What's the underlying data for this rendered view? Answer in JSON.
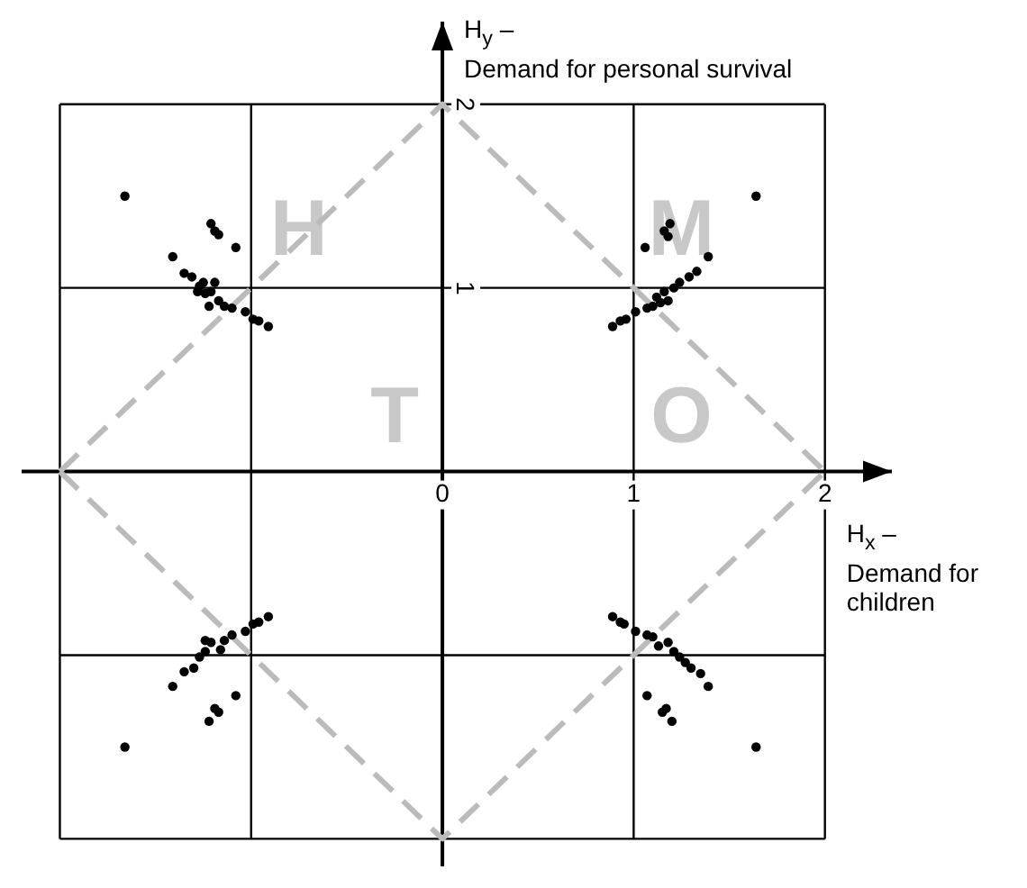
{
  "chart_data": {
    "type": "scatter",
    "xlabel": "H$_{x}$ –\nDemand for\nchildren",
    "ylabel": "H$_{y}$ –\nDemand for personal survival",
    "xlim": [
      -2.2,
      2.35
    ],
    "ylim": [
      -2.15,
      2.45
    ],
    "xticks": [
      {
        "value": -2,
        "label": null
      },
      {
        "value": -1,
        "label": null
      },
      0,
      1,
      2
    ],
    "yticks": [
      {
        "value": -2,
        "label": null
      },
      {
        "value": -1,
        "label": null
      },
      {
        "value": 0,
        "label": null
      },
      1,
      2
    ],
    "grid": true,
    "legend": false,
    "marker": "circle",
    "annotations": [
      "H",
      "M",
      "T",
      "O"
    ],
    "series": [
      {
        "color": "#000000",
        "x": [
          -1.66,
          -1.21,
          -1.19,
          -1.17,
          -1.08,
          -1.41,
          -1.35,
          -1.31,
          -1.27,
          -1.24,
          -1.21,
          -1.17,
          -1.22,
          -1.14,
          -1.1,
          -1.03,
          -0.99,
          -0.96,
          -0.91,
          -1.28,
          -1.25,
          -1.19,
          1.64,
          1.19,
          1.16,
          1.18,
          1.06,
          1.39,
          1.33,
          1.29,
          1.24,
          1.21,
          1.16,
          1.18,
          1.12,
          1.1,
          1.07,
          1.01,
          0.96,
          0.93,
          0.89,
          1.14,
          -1.66,
          -1.22,
          -1.19,
          -1.17,
          -1.08,
          -1.41,
          -1.35,
          -1.3,
          -1.27,
          -1.24,
          -1.21,
          -1.16,
          -1.14,
          -1.1,
          -1.03,
          -0.99,
          -0.96,
          -0.91,
          -1.24,
          1.64,
          1.2,
          1.17,
          1.15,
          1.07,
          1.39,
          1.35,
          1.3,
          1.27,
          1.24,
          1.21,
          1.18,
          1.13,
          1.1,
          1.07,
          1.01,
          0.95,
          0.93,
          0.89
        ],
        "values": [
          1.5,
          1.35,
          1.31,
          1.29,
          1.22,
          1.17,
          1.08,
          1.06,
          1.01,
          0.97,
          0.98,
          0.93,
          0.9,
          0.9,
          0.89,
          0.87,
          0.83,
          0.82,
          0.79,
          0.98,
          1.03,
          1.03,
          1.5,
          1.35,
          1.31,
          1.28,
          1.22,
          1.17,
          1.09,
          1.06,
          1.03,
          1.0,
          0.98,
          0.93,
          0.95,
          0.9,
          0.89,
          0.87,
          0.83,
          0.82,
          0.79,
          0.92,
          -1.5,
          -1.36,
          -1.29,
          -1.31,
          -1.22,
          -1.17,
          -1.09,
          -1.07,
          -1.01,
          -0.98,
          -0.93,
          -0.97,
          -0.92,
          -0.89,
          -0.87,
          -0.83,
          -0.82,
          -0.79,
          -0.92,
          -1.5,
          -1.36,
          -1.29,
          -1.31,
          -1.22,
          -1.17,
          -1.1,
          -1.07,
          -1.04,
          -1.01,
          -0.98,
          -0.93,
          -0.95,
          -0.9,
          -0.89,
          -0.87,
          -0.83,
          -0.82,
          -0.79
        ]
      },
      {
        "type": "line",
        "color": "#bbbbbb",
        "line_style": "dashed",
        "marker": "none",
        "x": [
          -2,
          0,
          2
        ],
        "values": [
          0,
          2,
          0
        ]
      },
      {
        "type": "line",
        "color": "#bbbbbb",
        "line_style": "dashed",
        "marker": "none",
        "x": [
          -2,
          0,
          2
        ],
        "values": [
          0,
          -2,
          0
        ]
      }
    ]
  }
}
